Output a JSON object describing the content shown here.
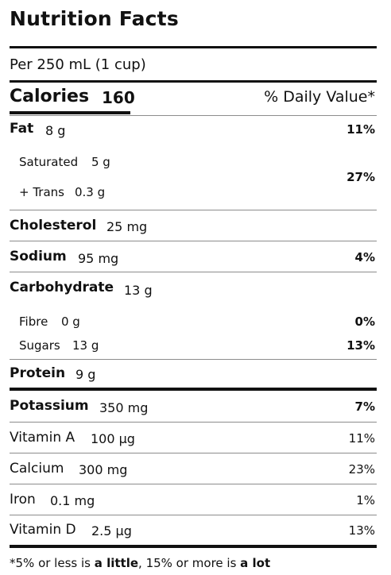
{
  "label": {
    "title": "Nutrition Facts",
    "serving": "Per 250 mL (1 cup)",
    "calories_label": "Calories",
    "calories_value": "160",
    "dv_header": "% Daily Value*"
  },
  "nutrients": {
    "fat": {
      "name": "Fat",
      "amount": "8 g",
      "dv": "11%"
    },
    "saturated": {
      "name": "Saturated",
      "amount": "5 g"
    },
    "trans": {
      "name": "+ Trans",
      "amount": "0.3 g"
    },
    "sat_trans_dv": "27%",
    "cholesterol": {
      "name": "Cholesterol",
      "amount": "25 mg"
    },
    "sodium": {
      "name": "Sodium",
      "amount": "95 mg",
      "dv": "4%"
    },
    "carbohydrate": {
      "name": "Carbohydrate",
      "amount": "13 g"
    },
    "fibre": {
      "name": "Fibre",
      "amount": "0 g",
      "dv": "0%"
    },
    "sugars": {
      "name": "Sugars",
      "amount": "13 g",
      "dv": "13%"
    },
    "protein": {
      "name": "Protein",
      "amount": "9 g"
    }
  },
  "minerals": {
    "potassium": {
      "name": "Potassium",
      "amount": "350 mg",
      "dv": "7%"
    },
    "vitamin_a": {
      "name": "Vitamin A",
      "amount": "100 µg",
      "dv": "11%"
    },
    "calcium": {
      "name": "Calcium",
      "amount": "300 mg",
      "dv": "23%"
    },
    "iron": {
      "name": "Iron",
      "amount": "0.1 mg",
      "dv": "1%"
    },
    "vitamin_d": {
      "name": "Vitamin D",
      "amount": "2.5 µg",
      "dv": "13%"
    }
  },
  "footnote": {
    "part1": "*5% or less is ",
    "little": "a little",
    "part2": ", 15% or more is ",
    "lot": "a lot"
  }
}
